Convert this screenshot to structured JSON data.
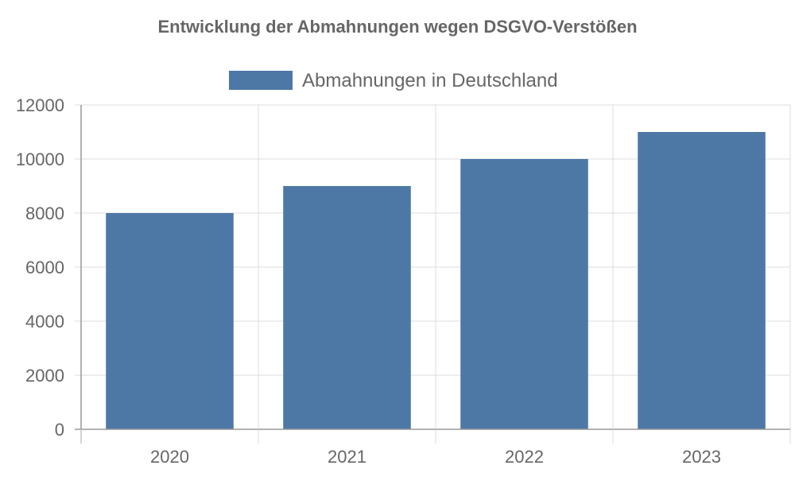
{
  "colors": {
    "bar": "#4d78a6",
    "text": "#666666",
    "grid": "#dcdcdc",
    "axis": "#999999",
    "background": "#ffffff"
  },
  "chart_data": {
    "type": "bar",
    "title": "Entwicklung der Abmahnungen wegen DSGVO-Verstößen",
    "categories": [
      "2020",
      "2021",
      "2022",
      "2023"
    ],
    "series": [
      {
        "name": "Abmahnungen in Deutschland",
        "values": [
          8000,
          9000,
          10000,
          11000
        ]
      }
    ],
    "xlabel": "",
    "ylabel": "",
    "ylim": [
      0,
      12000
    ],
    "yticks": [
      "0",
      "2000",
      "4000",
      "6000",
      "8000",
      "10000",
      "12000"
    ],
    "grid": true,
    "legend": "top"
  }
}
